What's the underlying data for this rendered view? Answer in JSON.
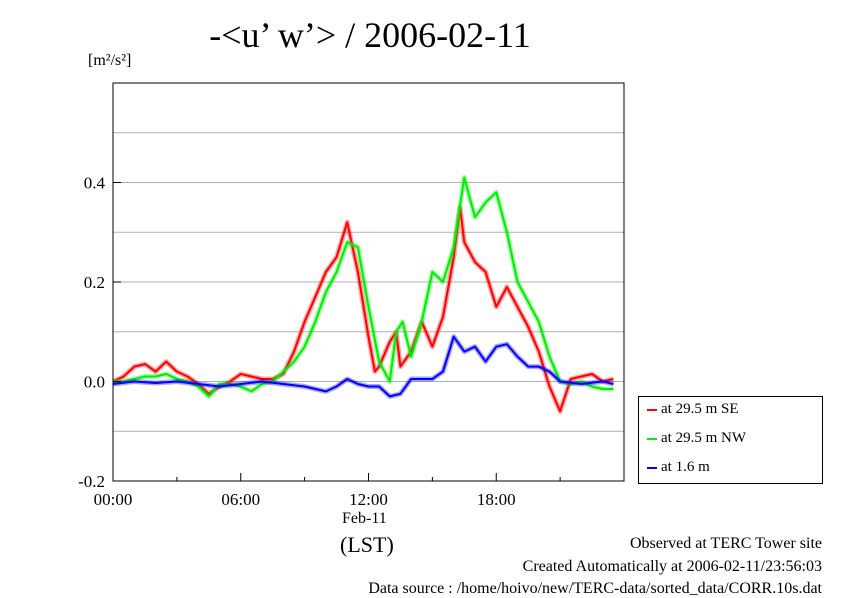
{
  "chart_data": {
    "type": "line",
    "title": "-<u’ w’> / 2006-02-11",
    "ylabel_unit": "[m²/s²]",
    "ylim": [
      -0.2,
      0.6
    ],
    "yticks": [
      -0.2,
      0.0,
      0.2,
      0.4
    ],
    "ytick_labels": [
      "-0.2",
      "0.0",
      "0.2",
      "0.4"
    ],
    "xlim": [
      0,
      24
    ],
    "xticks": [
      0,
      6,
      12,
      18
    ],
    "xtick_labels": [
      "00:00",
      "06:00",
      "12:00",
      "18:00"
    ],
    "x_date_label": "Feb-11",
    "x_tz_label": "(LST)",
    "grid": true,
    "legend_position": "right",
    "series": [
      {
        "name": "at 29.5 m SE",
        "color": "#ff0000",
        "x": [
          0,
          0.5,
          1,
          1.5,
          2,
          2.5,
          3,
          3.5,
          4,
          4.5,
          5,
          5.5,
          6,
          6.5,
          7,
          7.5,
          8,
          8.5,
          9,
          9.5,
          10,
          10.5,
          11,
          11.5,
          12,
          12.3,
          12.5,
          13,
          13.3,
          13.5,
          14,
          14.5,
          15,
          15.5,
          16,
          16.3,
          16.5,
          17,
          17.5,
          18,
          18.5,
          19,
          19.5,
          20,
          20.5,
          21,
          21.5,
          22,
          22.5,
          23,
          23.5
        ],
        "y": [
          0,
          0.01,
          0.03,
          0.035,
          0.02,
          0.04,
          0.02,
          0.01,
          -0.005,
          -0.025,
          -0.01,
          0.0,
          0.015,
          0.01,
          0.005,
          0.005,
          0.015,
          0.06,
          0.12,
          0.17,
          0.22,
          0.25,
          0.32,
          0.22,
          0.09,
          0.02,
          0.03,
          0.08,
          0.1,
          0.03,
          0.06,
          0.12,
          0.07,
          0.13,
          0.25,
          0.35,
          0.28,
          0.24,
          0.22,
          0.15,
          0.19,
          0.15,
          0.11,
          0.06,
          -0.01,
          -0.06,
          0.005,
          0.01,
          0.015,
          0.0,
          0.005
        ]
      },
      {
        "name": "at 29.5 m NW",
        "color": "#00ee00",
        "x": [
          0,
          0.5,
          1,
          1.5,
          2,
          2.5,
          3,
          3.5,
          4,
          4.5,
          5,
          5.5,
          6,
          6.5,
          7,
          7.5,
          8,
          8.5,
          9,
          9.5,
          10,
          10.5,
          11,
          11.5,
          12,
          12.5,
          13,
          13.3,
          13.6,
          14,
          14.5,
          15,
          15.5,
          16,
          16.5,
          17,
          17.5,
          18,
          18.5,
          19,
          19.5,
          20,
          20.5,
          21,
          21.5,
          22,
          22.5,
          23,
          23.5
        ],
        "y": [
          0,
          0.0,
          0.005,
          0.01,
          0.01,
          0.015,
          0.005,
          0.0,
          -0.01,
          -0.03,
          -0.005,
          -0.005,
          -0.01,
          -0.02,
          -0.005,
          0.0,
          0.02,
          0.04,
          0.07,
          0.12,
          0.18,
          0.22,
          0.28,
          0.27,
          0.15,
          0.04,
          0.0,
          0.1,
          0.12,
          0.05,
          0.12,
          0.22,
          0.2,
          0.27,
          0.41,
          0.33,
          0.36,
          0.38,
          0.3,
          0.2,
          0.16,
          0.12,
          0.05,
          0.0,
          -0.005,
          0.0,
          -0.01,
          -0.015,
          -0.015
        ]
      },
      {
        "name": "at 1.6 m",
        "color": "#0000ff",
        "x": [
          0,
          1,
          2,
          3,
          4,
          5,
          6,
          7,
          8,
          9,
          10,
          10.5,
          11,
          11.5,
          12,
          12.5,
          13,
          13.5,
          14,
          14.5,
          15,
          15.5,
          16,
          16.5,
          17,
          17.5,
          18,
          18.5,
          19,
          19.5,
          20,
          20.5,
          21,
          22,
          23,
          23.5
        ],
        "y": [
          -0.005,
          0.0,
          -0.003,
          0.0,
          -0.005,
          -0.01,
          -0.005,
          0.0,
          -0.005,
          -0.01,
          -0.02,
          -0.01,
          0.005,
          -0.005,
          -0.01,
          -0.01,
          -0.03,
          -0.025,
          0.005,
          0.005,
          0.005,
          0.02,
          0.09,
          0.06,
          0.07,
          0.04,
          0.07,
          0.075,
          0.05,
          0.03,
          0.03,
          0.02,
          0.0,
          -0.005,
          0.0,
          -0.005
        ]
      }
    ]
  },
  "footer": {
    "line1": "Observed at TERC Tower site",
    "line2": "Created Automatically at 2006-02-11/23:56:03",
    "line3": "Data source : /home/hoivo/new/TERC-data/sorted_data/CORR.10s.dat"
  }
}
